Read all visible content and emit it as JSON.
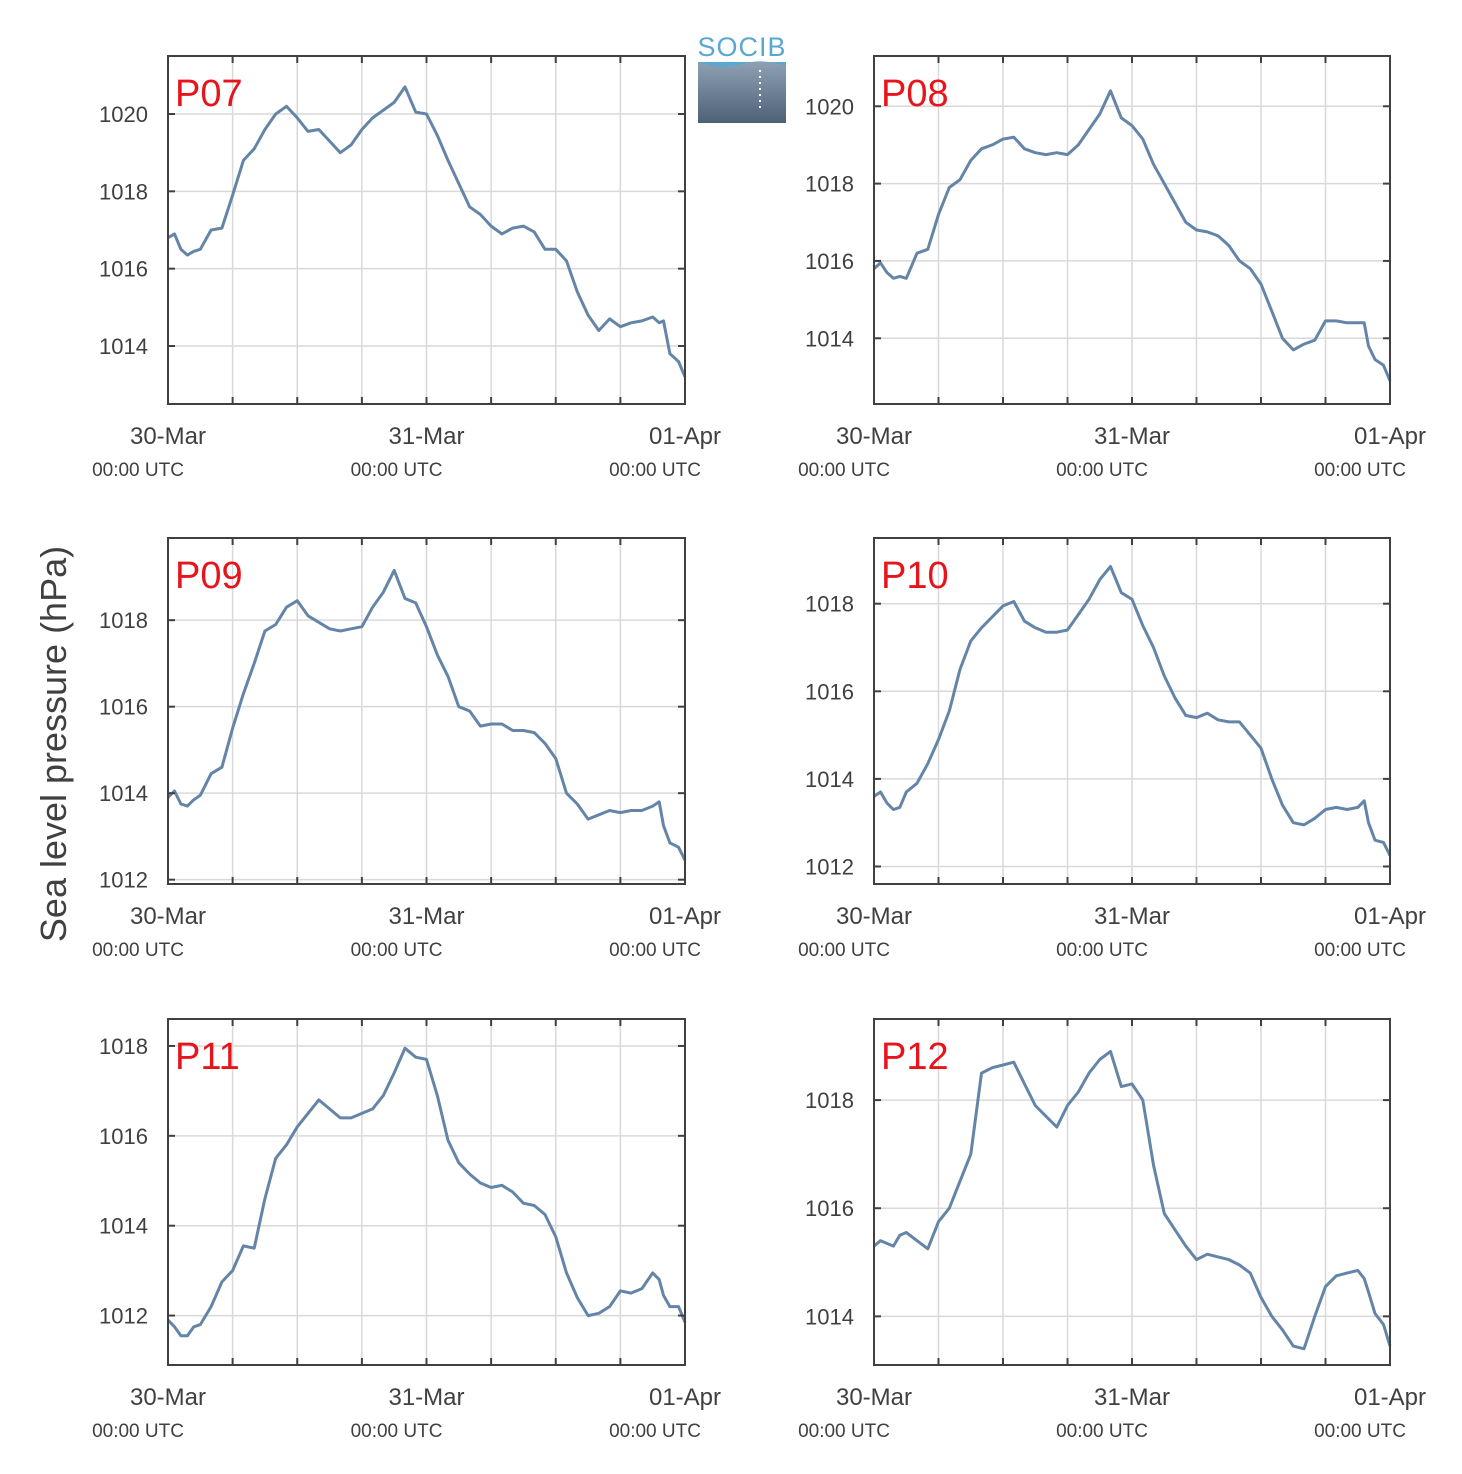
{
  "figure": {
    "ylabel": "Sea level pressure (hPa)",
    "logo_text": "SOCIB",
    "colors": {
      "line": "#6485a8",
      "station_label": "#e8141c",
      "grid": "#d9d9d9",
      "axis": "#404040",
      "logo_top": "#5aa7d1"
    }
  },
  "chart_data": [
    {
      "type": "line",
      "label": "P07",
      "x_ticks": [
        {
          "date": "30-Mar",
          "time": "00:00 UTC"
        },
        {
          "date": "31-Mar",
          "time": "00:00 UTC"
        },
        {
          "date": "01-Apr",
          "time": "00:00 UTC"
        }
      ],
      "xlim_hours": [
        0,
        48
      ],
      "ylim": [
        1012.5,
        1021.5
      ],
      "yticks": [
        1014,
        1016,
        1018,
        1020
      ],
      "grid": true,
      "x_hours": [
        0,
        0.6,
        1.2,
        1.8,
        2.4,
        3,
        4,
        5,
        6,
        7,
        8,
        9,
        10,
        11,
        12,
        13,
        14,
        15,
        16,
        17,
        18,
        19,
        20,
        21,
        22,
        23,
        24,
        25,
        26,
        27,
        28,
        29,
        30,
        31,
        32,
        33,
        34,
        35,
        36,
        37,
        38,
        39,
        40,
        41,
        42,
        43,
        44,
        45,
        45.6,
        46,
        46.6,
        47.4,
        48
      ],
      "y": [
        1016.8,
        1016.9,
        1016.5,
        1016.35,
        1016.45,
        1016.5,
        1017.0,
        1017.05,
        1017.9,
        1018.8,
        1019.1,
        1019.6,
        1020.0,
        1020.2,
        1019.9,
        1019.55,
        1019.6,
        1019.3,
        1019.0,
        1019.2,
        1019.6,
        1019.9,
        1020.1,
        1020.3,
        1020.7,
        1020.05,
        1020.0,
        1019.45,
        1018.8,
        1018.2,
        1017.6,
        1017.4,
        1017.1,
        1016.9,
        1017.05,
        1017.1,
        1016.95,
        1016.5,
        1016.5,
        1016.2,
        1015.4,
        1014.8,
        1014.4,
        1014.7,
        1014.5,
        1014.6,
        1014.65,
        1014.75,
        1014.6,
        1014.65,
        1013.8,
        1013.6,
        1013.2
      ]
    },
    {
      "type": "line",
      "label": "P08",
      "x_ticks": [
        {
          "date": "30-Mar",
          "time": "00:00 UTC"
        },
        {
          "date": "31-Mar",
          "time": "00:00 UTC"
        },
        {
          "date": "01-Apr",
          "time": "00:00 UTC"
        }
      ],
      "xlim_hours": [
        0,
        48
      ],
      "ylim": [
        1012.3,
        1021.3
      ],
      "yticks": [
        1014,
        1016,
        1018,
        1020
      ],
      "grid": true,
      "x_hours": [
        0,
        0.6,
        1.2,
        1.8,
        2.4,
        3,
        4,
        5,
        6,
        7,
        8,
        9,
        10,
        11,
        12,
        13,
        14,
        15,
        16,
        17,
        18,
        19,
        20,
        21,
        22,
        23,
        24,
        25,
        26,
        27,
        28,
        29,
        30,
        31,
        32,
        33,
        34,
        35,
        36,
        37,
        38,
        39,
        40,
        41,
        42,
        43,
        44,
        45,
        45.6,
        46,
        46.6,
        47.4,
        48
      ],
      "y": [
        1015.8,
        1015.95,
        1015.7,
        1015.55,
        1015.6,
        1015.55,
        1016.2,
        1016.3,
        1017.2,
        1017.9,
        1018.1,
        1018.6,
        1018.9,
        1019.0,
        1019.15,
        1019.2,
        1018.9,
        1018.8,
        1018.75,
        1018.8,
        1018.75,
        1019.0,
        1019.4,
        1019.8,
        1020.4,
        1019.7,
        1019.5,
        1019.15,
        1018.5,
        1018.0,
        1017.5,
        1017.0,
        1016.8,
        1016.75,
        1016.65,
        1016.4,
        1016.0,
        1015.8,
        1015.4,
        1014.7,
        1014.0,
        1013.7,
        1013.85,
        1013.95,
        1014.45,
        1014.45,
        1014.4,
        1014.4,
        1014.4,
        1013.8,
        1013.45,
        1013.3,
        1012.9
      ]
    },
    {
      "type": "line",
      "label": "P09",
      "x_ticks": [
        {
          "date": "30-Mar",
          "time": "00:00 UTC"
        },
        {
          "date": "31-Mar",
          "time": "00:00 UTC"
        },
        {
          "date": "01-Apr",
          "time": "00:00 UTC"
        }
      ],
      "xlim_hours": [
        0,
        48
      ],
      "ylim": [
        1011.9,
        1019.9
      ],
      "yticks": [
        1012,
        1014,
        1016,
        1018
      ],
      "grid": true,
      "x_hours": [
        0,
        0.6,
        1.2,
        1.8,
        2.4,
        3,
        4,
        5,
        6,
        7,
        8,
        9,
        10,
        11,
        12,
        13,
        14,
        15,
        16,
        17,
        18,
        19,
        20,
        21,
        22,
        23,
        24,
        25,
        26,
        27,
        28,
        29,
        30,
        31,
        32,
        33,
        34,
        35,
        36,
        37,
        38,
        39,
        40,
        41,
        42,
        43,
        44,
        45,
        45.6,
        46,
        46.6,
        47.4,
        48
      ],
      "y": [
        1013.9,
        1014.05,
        1013.75,
        1013.7,
        1013.85,
        1013.95,
        1014.45,
        1014.6,
        1015.5,
        1016.3,
        1017.0,
        1017.75,
        1017.9,
        1018.3,
        1018.45,
        1018.1,
        1017.95,
        1017.8,
        1017.75,
        1017.8,
        1017.85,
        1018.3,
        1018.65,
        1019.15,
        1018.5,
        1018.4,
        1017.85,
        1017.2,
        1016.7,
        1016.0,
        1015.9,
        1015.55,
        1015.6,
        1015.6,
        1015.45,
        1015.45,
        1015.4,
        1015.15,
        1014.8,
        1014.0,
        1013.75,
        1013.4,
        1013.5,
        1013.6,
        1013.55,
        1013.6,
        1013.6,
        1013.7,
        1013.8,
        1013.25,
        1012.85,
        1012.75,
        1012.45
      ]
    },
    {
      "type": "line",
      "label": "P10",
      "x_ticks": [
        {
          "date": "30-Mar",
          "time": "00:00 UTC"
        },
        {
          "date": "31-Mar",
          "time": "00:00 UTC"
        },
        {
          "date": "01-Apr",
          "time": "00:00 UTC"
        }
      ],
      "xlim_hours": [
        0,
        48
      ],
      "ylim": [
        1011.6,
        1019.5
      ],
      "yticks": [
        1012,
        1014,
        1016,
        1018
      ],
      "grid": true,
      "x_hours": [
        0,
        0.6,
        1.2,
        1.8,
        2.4,
        3,
        4,
        5,
        6,
        7,
        8,
        9,
        10,
        11,
        12,
        13,
        14,
        15,
        16,
        17,
        18,
        19,
        20,
        21,
        22,
        23,
        24,
        25,
        26,
        27,
        28,
        29,
        30,
        31,
        32,
        33,
        34,
        35,
        36,
        37,
        38,
        39,
        40,
        41,
        42,
        43,
        44,
        45,
        45.6,
        46,
        46.6,
        47.4,
        48
      ],
      "y": [
        1013.6,
        1013.7,
        1013.45,
        1013.3,
        1013.35,
        1013.7,
        1013.9,
        1014.35,
        1014.9,
        1015.55,
        1016.5,
        1017.15,
        1017.45,
        1017.7,
        1017.95,
        1018.05,
        1017.6,
        1017.45,
        1017.35,
        1017.35,
        1017.4,
        1017.75,
        1018.1,
        1018.55,
        1018.85,
        1018.25,
        1018.1,
        1017.5,
        1017.0,
        1016.35,
        1015.85,
        1015.45,
        1015.4,
        1015.5,
        1015.35,
        1015.3,
        1015.3,
        1015.0,
        1014.7,
        1014.0,
        1013.4,
        1013.0,
        1012.95,
        1013.1,
        1013.3,
        1013.35,
        1013.3,
        1013.35,
        1013.5,
        1013.0,
        1012.6,
        1012.55,
        1012.25
      ]
    },
    {
      "type": "line",
      "label": "P11",
      "x_ticks": [
        {
          "date": "30-Mar",
          "time": "00:00 UTC"
        },
        {
          "date": "31-Mar",
          "time": "00:00 UTC"
        },
        {
          "date": "01-Apr",
          "time": "00:00 UTC"
        }
      ],
      "xlim_hours": [
        0,
        48
      ],
      "ylim": [
        1010.9,
        1018.6
      ],
      "yticks": [
        1012,
        1014,
        1016,
        1018
      ],
      "grid": true,
      "x_hours": [
        0,
        0.6,
        1.2,
        1.8,
        2.4,
        3,
        4,
        5,
        6,
        7,
        8,
        9,
        10,
        11,
        12,
        13,
        14,
        15,
        16,
        17,
        18,
        19,
        20,
        21,
        22,
        23,
        24,
        25,
        26,
        27,
        28,
        29,
        30,
        31,
        32,
        33,
        34,
        35,
        36,
        37,
        38,
        39,
        40,
        41,
        42,
        43,
        44,
        45,
        45.6,
        46,
        46.6,
        47.4,
        48
      ],
      "y": [
        1011.9,
        1011.75,
        1011.55,
        1011.55,
        1011.75,
        1011.8,
        1012.2,
        1012.75,
        1013.0,
        1013.55,
        1013.5,
        1014.6,
        1015.5,
        1015.8,
        1016.2,
        1016.5,
        1016.8,
        1016.6,
        1016.4,
        1016.4,
        1016.5,
        1016.6,
        1016.9,
        1017.4,
        1017.95,
        1017.75,
        1017.7,
        1016.9,
        1015.9,
        1015.4,
        1015.15,
        1014.95,
        1014.85,
        1014.9,
        1014.75,
        1014.5,
        1014.45,
        1014.25,
        1013.75,
        1012.95,
        1012.4,
        1012.0,
        1012.05,
        1012.2,
        1012.55,
        1012.5,
        1012.6,
        1012.95,
        1012.8,
        1012.45,
        1012.2,
        1012.2,
        1011.85
      ]
    },
    {
      "type": "line",
      "label": "P12",
      "x_ticks": [
        {
          "date": "30-Mar",
          "time": "00:00 UTC"
        },
        {
          "date": "31-Mar",
          "time": "00:00 UTC"
        },
        {
          "date": "01-Apr",
          "time": "00:00 UTC"
        }
      ],
      "xlim_hours": [
        0,
        48
      ],
      "ylim": [
        1013.1,
        1019.5
      ],
      "yticks": [
        1014,
        1016,
        1018
      ],
      "grid": true,
      "x_hours": [
        0,
        0.6,
        1.2,
        1.8,
        2.4,
        3,
        4,
        5,
        6,
        7,
        8,
        9,
        10,
        11,
        12,
        13,
        14,
        15,
        16,
        17,
        18,
        19,
        20,
        21,
        22,
        23,
        24,
        25,
        26,
        27,
        28,
        29,
        30,
        31,
        32,
        33,
        34,
        35,
        36,
        37,
        38,
        39,
        40,
        41,
        42,
        43,
        44,
        45,
        45.6,
        46,
        46.6,
        47.4,
        48
      ],
      "y": [
        1015.3,
        1015.4,
        1015.35,
        1015.3,
        1015.5,
        1015.55,
        1015.4,
        1015.25,
        1015.75,
        1016.0,
        1016.5,
        1017.0,
        1018.5,
        1018.6,
        1018.65,
        1018.7,
        1018.3,
        1017.9,
        1017.7,
        1017.5,
        1017.9,
        1018.15,
        1018.5,
        1018.75,
        1018.9,
        1018.25,
        1018.3,
        1018.0,
        1016.8,
        1015.9,
        1015.6,
        1015.3,
        1015.05,
        1015.15,
        1015.1,
        1015.05,
        1014.95,
        1014.8,
        1014.35,
        1014.0,
        1013.75,
        1013.45,
        1013.4,
        1014.0,
        1014.55,
        1014.75,
        1014.8,
        1014.85,
        1014.7,
        1014.45,
        1014.05,
        1013.85,
        1013.45
      ]
    }
  ]
}
